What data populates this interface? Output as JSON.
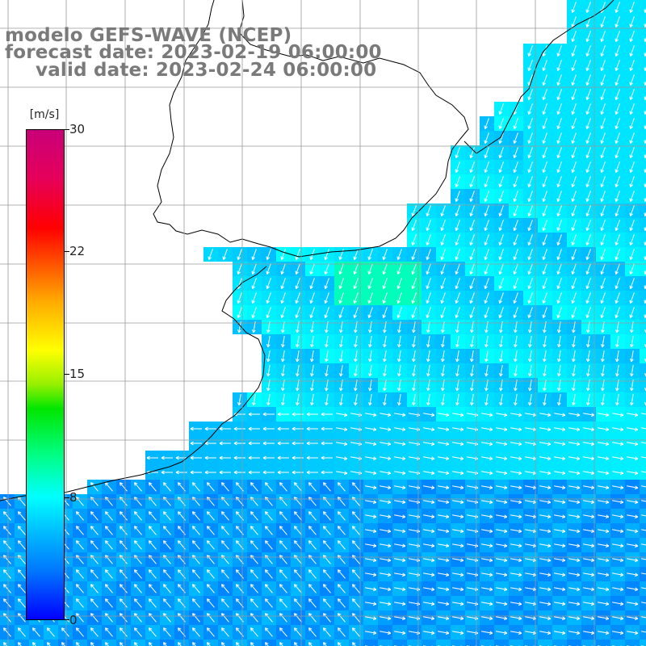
{
  "header": {
    "model": "modelo GEFS-WAVE (NCEP)",
    "forecast": "forecast date: 2023-02-19 06:00:00",
    "valid": "valid date: 2023-02-24 06:00:00"
  },
  "colorbar": {
    "unit": "[m/s]",
    "ticks": [
      "30",
      "22",
      "15",
      "8",
      "0"
    ],
    "tick_values": [
      30,
      22,
      15,
      8,
      0
    ],
    "min": 0,
    "max": 30,
    "colors": [
      "#0000ff",
      "#0078ff",
      "#00beff",
      "#00ffff",
      "#00ff8c",
      "#00e600",
      "#96f000",
      "#ffff00",
      "#ffaa00",
      "#ff5a00",
      "#ff0000",
      "#e6005a",
      "#c80078"
    ]
  },
  "map": {
    "land_color": "#ffffff",
    "coast_color": "#000000",
    "grid_color": "#9a9a9a",
    "arrow_color": "#ffffff",
    "field": "wind speed with direction arrows"
  }
}
